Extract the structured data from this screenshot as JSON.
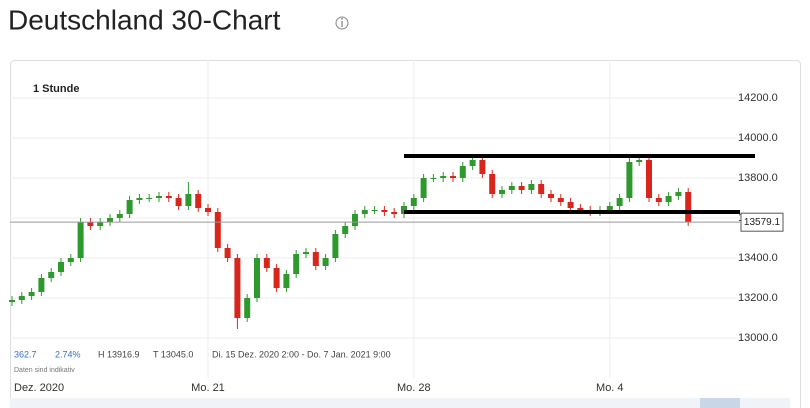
{
  "chart_data": {
    "type": "candlestick",
    "title": "Deutschland 30-Chart",
    "period": "1 Stunde",
    "stats": [
      "362.7",
      "2.74%",
      "H 13916.9",
      "T 13045.0",
      "Di. 15 Dez. 2020 2:00 - Do. 7 Jan. 2021 9:00"
    ],
    "note": "Daten sind indikativ",
    "categories": [
      "Dez. 2020",
      null,
      null,
      null,
      null,
      null,
      null,
      null,
      null,
      null,
      null,
      null,
      null,
      null,
      null,
      null,
      null,
      null,
      null,
      null,
      "Mo. 21",
      null,
      null,
      null,
      null,
      null,
      null,
      null,
      null,
      null,
      null,
      null,
      null,
      null,
      null,
      null,
      null,
      null,
      null,
      null,
      null,
      "Mo. 28",
      null,
      null,
      null,
      null,
      null,
      null,
      null,
      null,
      null,
      null,
      null,
      null,
      null,
      null,
      null,
      null,
      null,
      null,
      null,
      "Mo. 4",
      null,
      null,
      null,
      null,
      null,
      null,
      null,
      null
    ],
    "open": [
      13180,
      13190,
      13210,
      13230,
      13300,
      13330,
      13380,
      13400,
      13580,
      13560,
      13580,
      13600,
      13620,
      13690,
      13700,
      13700,
      13710,
      13700,
      13660,
      13720,
      13650,
      13630,
      13450,
      13400,
      13100,
      13200,
      13400,
      13350,
      13250,
      13320,
      13420,
      13430,
      13360,
      13400,
      13520,
      13560,
      13620,
      13640,
      13640,
      13630,
      13620,
      13660,
      13700,
      13800,
      13800,
      13810,
      13800,
      13860,
      13890,
      13820,
      13720,
      13740,
      13760,
      13740,
      13770,
      13720,
      13700,
      13680,
      13650,
      13640,
      13630,
      13640,
      13660,
      13700,
      13880,
      13890,
      13700,
      13680,
      13710,
      13730
    ],
    "high": [
      13210,
      13230,
      13250,
      13320,
      13350,
      13400,
      13420,
      13600,
      13600,
      13600,
      13620,
      13640,
      13710,
      13720,
      13720,
      13730,
      13730,
      13720,
      13780,
      13740,
      13670,
      13650,
      13470,
      13420,
      13220,
      13420,
      13420,
      13370,
      13340,
      13440,
      13450,
      13450,
      13420,
      13540,
      13580,
      13640,
      13660,
      13660,
      13660,
      13650,
      13680,
      13720,
      13820,
      13820,
      13830,
      13830,
      13880,
      13916.9,
      13910,
      13840,
      13760,
      13780,
      13780,
      13790,
      13790,
      13740,
      13720,
      13700,
      13670,
      13660,
      13660,
      13680,
      13720,
      13900,
      13910,
      13910,
      13720,
      13730,
      13750,
      13750
    ],
    "low": [
      13160,
      13170,
      13190,
      13210,
      13280,
      13310,
      13360,
      13380,
      13540,
      13540,
      13560,
      13580,
      13600,
      13670,
      13680,
      13680,
      13680,
      13640,
      13640,
      13630,
      13610,
      13430,
      13380,
      13045,
      13080,
      13180,
      13330,
      13230,
      13230,
      13300,
      13400,
      13340,
      13340,
      13380,
      13500,
      13540,
      13600,
      13620,
      13610,
      13600,
      13600,
      13640,
      13680,
      13780,
      13780,
      13780,
      13780,
      13840,
      13800,
      13700,
      13700,
      13720,
      13720,
      13720,
      13700,
      13680,
      13660,
      13630,
      13620,
      13610,
      13610,
      13620,
      13640,
      13680,
      13860,
      13680,
      13660,
      13660,
      13690,
      13560
    ],
    "close": [
      13190,
      13210,
      13230,
      13300,
      13330,
      13380,
      13400,
      13580,
      13560,
      13580,
      13600,
      13620,
      13690,
      13700,
      13700,
      13710,
      13700,
      13660,
      13720,
      13650,
      13630,
      13450,
      13400,
      13100,
      13200,
      13400,
      13350,
      13250,
      13320,
      13420,
      13430,
      13360,
      13400,
      13520,
      13560,
      13620,
      13640,
      13640,
      13630,
      13620,
      13660,
      13700,
      13800,
      13800,
      13810,
      13800,
      13860,
      13890,
      13820,
      13720,
      13740,
      13760,
      13740,
      13770,
      13720,
      13700,
      13680,
      13650,
      13640,
      13630,
      13640,
      13660,
      13700,
      13880,
      13890,
      13700,
      13680,
      13710,
      13730,
      13579.1
    ],
    "up_color": "#2e9a2e",
    "down_color": "#d9261c",
    "hlines": [
      13910,
      13630
    ],
    "ylim": [
      12815,
      14390
    ],
    "yticks": [
      {
        "value": 13000,
        "label": "13000.0"
      },
      {
        "value": 13200,
        "label": "13200.0"
      },
      {
        "value": 13400,
        "label": "13400.0"
      },
      {
        "value": 13600,
        "label": "13600.0"
      },
      {
        "value": 13800,
        "label": "13800.0"
      },
      {
        "value": 14000,
        "label": "14000.0"
      },
      {
        "value": 14200,
        "label": "14200.0"
      }
    ],
    "grid": true
  }
}
